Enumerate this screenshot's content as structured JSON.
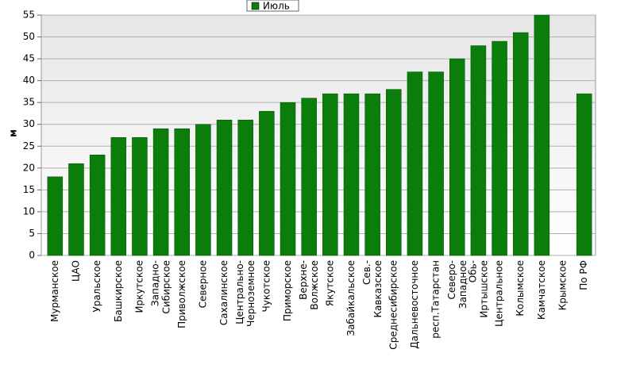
{
  "chart_data": {
    "type": "bar",
    "y_label": "м",
    "categories": [
      "Мурманское",
      "ЦАО",
      "Уральское",
      "Башкирское",
      "Иркутское",
      "Западно-Сибирское",
      "Приволжское",
      "Северное",
      "Сахалинское",
      "Центрально-Черноземное",
      "Чукотское",
      "Приморское",
      "Верхне-Волжское",
      "Якутское",
      "Забайкальское",
      "Сев.-Кавказское",
      "Среднесибирское",
      "Дальневосточное",
      "респ.Татарстан",
      "Северо-Западное",
      "Обь-Иртышское",
      "Центральное",
      "Колымское",
      "Камчатское",
      "Крымское",
      "По РФ"
    ],
    "series": [
      {
        "name": "Июль",
        "color": "#0a7d0a",
        "values": [
          18,
          21,
          23,
          27,
          27,
          29,
          29,
          30,
          31,
          31,
          33,
          35,
          36,
          37,
          37,
          37,
          38,
          42,
          42,
          45,
          48,
          49,
          51,
          55,
          null,
          37
        ]
      }
    ],
    "ylim": [
      0,
      55
    ],
    "yticks": [
      0,
      5,
      10,
      15,
      20,
      25,
      30,
      35,
      40,
      45,
      50,
      55
    ],
    "grid": true
  }
}
